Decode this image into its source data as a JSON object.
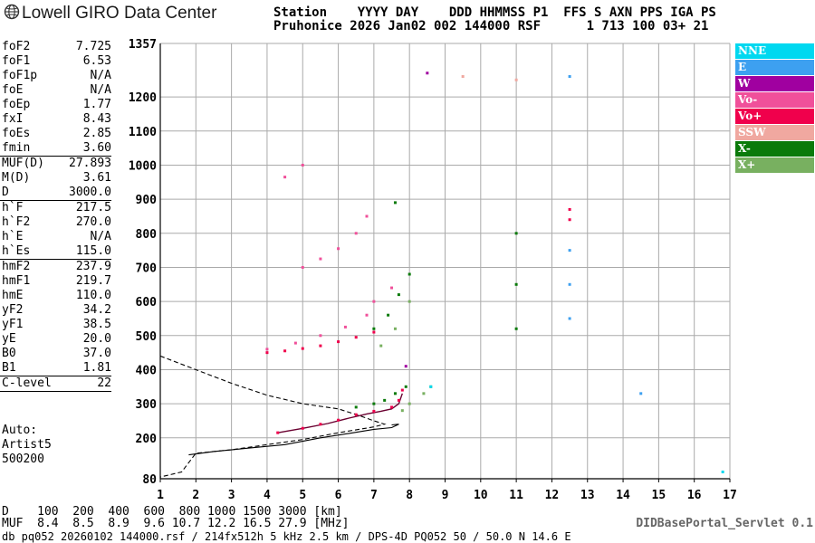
{
  "logo": {
    "text": "Lowell GIRO Data Center"
  },
  "header": {
    "line1": "Station    YYYY DAY    DDD HHMMSS P1  FFS S AXN PPS IGA PS",
    "line2": "Pruhonice 2026 Jan02 002 144000 RSF      1 713 100 03+ 21"
  },
  "params": [
    {
      "label": "foF2",
      "value": "7.725"
    },
    {
      "label": "foF1",
      "value": "6.53"
    },
    {
      "label": "foF1p",
      "value": "N/A"
    },
    {
      "label": "foE",
      "value": "N/A"
    },
    {
      "label": "foEp",
      "value": "1.77"
    },
    {
      "label": "fxI",
      "value": "8.43"
    },
    {
      "label": "foEs",
      "value": "2.85"
    },
    {
      "label": "fmin",
      "value": "3.60"
    },
    {
      "sep": true
    },
    {
      "label": "MUF(D)",
      "value": "27.893"
    },
    {
      "label": "M(D)",
      "value": "3.61"
    },
    {
      "label": "D",
      "value": "3000.0"
    },
    {
      "sep": true
    },
    {
      "label": "h`F",
      "value": "217.5"
    },
    {
      "label": "h`F2",
      "value": "270.0"
    },
    {
      "label": "h`E",
      "value": "N/A"
    },
    {
      "label": "h`Es",
      "value": "115.0"
    },
    {
      "sep": true
    },
    {
      "label": "hmF2",
      "value": "237.9"
    },
    {
      "label": "hmF1",
      "value": "219.7"
    },
    {
      "label": "hmE",
      "value": "110.0"
    },
    {
      "label": "yF2",
      "value": "34.2"
    },
    {
      "label": "yF1",
      "value": "38.5"
    },
    {
      "label": "yE",
      "value": "20.0"
    },
    {
      "label": "B0",
      "value": "37.0"
    },
    {
      "label": "B1",
      "value": "1.81"
    },
    {
      "sep": true
    },
    {
      "label": "C-level",
      "value": "22"
    },
    {
      "sep": true
    }
  ],
  "autoscaling": [
    "Auto:",
    "Artist5",
    "500200"
  ],
  "legend": [
    {
      "label": "NNE",
      "color": "#00d8f0"
    },
    {
      "label": "E",
      "color": "#3da0f0"
    },
    {
      "label": "W",
      "color": "#a000a0"
    },
    {
      "label": "Vo-",
      "color": "#f0509a"
    },
    {
      "label": "Vo+",
      "color": "#f0004c"
    },
    {
      "label": "SSW",
      "color": "#f0a8a0"
    },
    {
      "label": "X-",
      "color": "#0a7a0a"
    },
    {
      "label": "X+",
      "color": "#78b060"
    }
  ],
  "footer": {
    "d_line": "D    100  200  400  600  800 1000 1500 3000 [km]",
    "muf_line": "MUF  8.4  8.5  8.9  9.6 10.7 12.2 16.5 27.9 [MHz]",
    "file_line": "db pq052 20260102 144000.rsf / 214fx512h 5 kHz 2.5 km / DPS-4D PQ052 50 / 50.0 N 14.6 E",
    "servlet": "DIDBasePortal_Servlet 0.1"
  },
  "chart_data": {
    "type": "scatter",
    "title": "",
    "xlabel": "",
    "ylabel": "",
    "xlim": [
      1,
      17
    ],
    "ylim": [
      80,
      1357
    ],
    "x_ticks": [
      1,
      2,
      3,
      4,
      5,
      6,
      7,
      8,
      9,
      10,
      11,
      12,
      13,
      14,
      15,
      16,
      17
    ],
    "y_ticks": [
      80,
      200,
      300,
      400,
      500,
      600,
      700,
      800,
      900,
      1000,
      1100,
      1200,
      1357
    ],
    "grid": true,
    "series": [
      {
        "name": "Vo+",
        "points": [
          [
            4.0,
            450
          ],
          [
            4.5,
            455
          ],
          [
            5.0,
            462
          ],
          [
            5.5,
            470
          ],
          [
            6.0,
            482
          ],
          [
            6.5,
            495
          ],
          [
            7.0,
            510
          ],
          [
            4.3,
            215
          ],
          [
            5.0,
            228
          ],
          [
            5.5,
            240
          ],
          [
            6.0,
            252
          ],
          [
            6.5,
            268
          ],
          [
            7.0,
            278
          ],
          [
            7.5,
            290
          ],
          [
            7.7,
            310
          ],
          [
            7.8,
            340
          ],
          [
            12.5,
            870
          ],
          [
            12.5,
            840
          ]
        ]
      },
      {
        "name": "Vo-",
        "points": [
          [
            4.0,
            460
          ],
          [
            4.8,
            478
          ],
          [
            5.5,
            500
          ],
          [
            6.2,
            525
          ],
          [
            6.8,
            560
          ],
          [
            5.0,
            700
          ],
          [
            5.5,
            725
          ],
          [
            6.0,
            755
          ],
          [
            6.5,
            800
          ],
          [
            6.8,
            850
          ],
          [
            4.5,
            965
          ],
          [
            5.0,
            1000
          ],
          [
            7.0,
            600
          ],
          [
            7.5,
            640
          ]
        ]
      },
      {
        "name": "X-",
        "points": [
          [
            6.5,
            290
          ],
          [
            7.0,
            300
          ],
          [
            7.3,
            310
          ],
          [
            7.6,
            330
          ],
          [
            7.9,
            350
          ],
          [
            7.0,
            520
          ],
          [
            7.4,
            560
          ],
          [
            7.7,
            620
          ],
          [
            8.0,
            680
          ],
          [
            7.6,
            890
          ],
          [
            11.0,
            800
          ],
          [
            11.0,
            650
          ],
          [
            11.0,
            520
          ]
        ]
      },
      {
        "name": "X+",
        "points": [
          [
            7.2,
            470
          ],
          [
            7.6,
            520
          ],
          [
            8.0,
            600
          ],
          [
            7.8,
            280
          ],
          [
            8.0,
            300
          ],
          [
            8.4,
            330
          ],
          [
            8.6,
            350
          ]
        ]
      },
      {
        "name": "E",
        "points": [
          [
            12.5,
            750
          ],
          [
            12.5,
            650
          ],
          [
            12.5,
            550
          ],
          [
            14.5,
            330
          ],
          [
            12.5,
            1260
          ]
        ]
      },
      {
        "name": "NNE",
        "points": [
          [
            8.6,
            350
          ],
          [
            16.8,
            100
          ]
        ]
      },
      {
        "name": "W",
        "points": [
          [
            7.9,
            410
          ],
          [
            8.5,
            1270
          ]
        ]
      },
      {
        "name": "SSW",
        "points": [
          [
            11.0,
            1250
          ],
          [
            9.5,
            1260
          ]
        ]
      }
    ],
    "profile_dashed": [
      [
        1.0,
        440
      ],
      [
        2.0,
        400
      ],
      [
        3.0,
        360
      ],
      [
        4.0,
        325
      ],
      [
        5.0,
        300
      ],
      [
        6.0,
        285
      ],
      [
        6.6,
        265
      ],
      [
        7.0,
        250
      ],
      [
        7.3,
        240
      ],
      [
        7.0,
        232
      ],
      [
        6.0,
        215
      ],
      [
        5.0,
        195
      ],
      [
        4.0,
        180
      ],
      [
        3.0,
        165
      ],
      [
        2.0,
        155
      ],
      [
        1.6,
        100
      ],
      [
        1.0,
        85
      ]
    ],
    "profile_solid": [
      [
        1.8,
        150
      ],
      [
        2.5,
        160
      ],
      [
        3.5,
        170
      ],
      [
        4.5,
        180
      ],
      [
        5.5,
        200
      ],
      [
        6.3,
        213
      ],
      [
        7.0,
        225
      ],
      [
        7.5,
        230
      ],
      [
        7.7,
        240
      ],
      [
        7.5,
        238
      ]
    ],
    "trace_black": [
      [
        4.3,
        215
      ],
      [
        5.0,
        228
      ],
      [
        5.7,
        242
      ],
      [
        6.3,
        258
      ],
      [
        6.8,
        270
      ],
      [
        7.2,
        278
      ],
      [
        7.5,
        285
      ],
      [
        7.7,
        300
      ],
      [
        7.8,
        330
      ]
    ]
  }
}
